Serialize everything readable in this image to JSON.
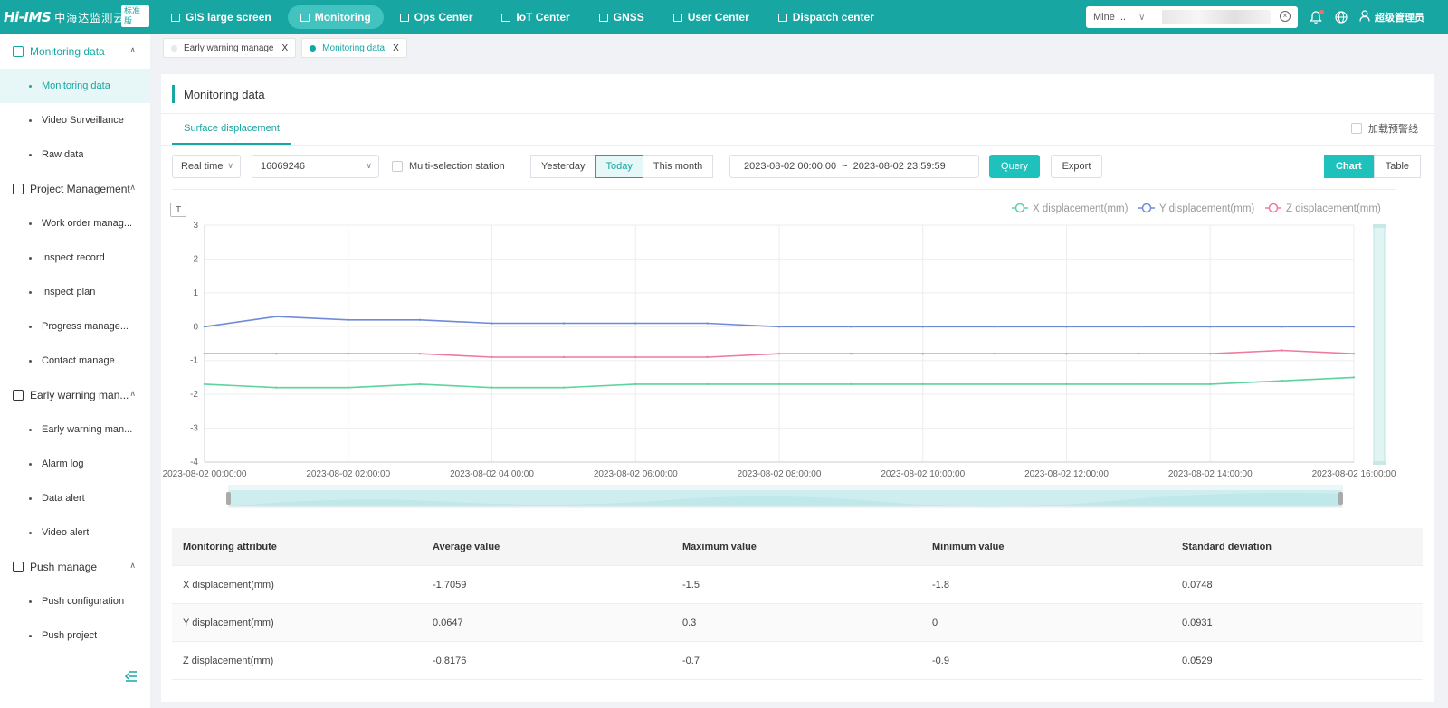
{
  "brand": {
    "mark": "Hi-IMS",
    "name_cn": "中海达监测云",
    "badge": "标准版"
  },
  "nav": [
    {
      "label": "GIS large screen",
      "icon": "monitor-icon",
      "active": false
    },
    {
      "label": "Monitoring",
      "icon": "monitor-icon",
      "active": true
    },
    {
      "label": "Ops Center",
      "icon": "building-icon",
      "active": false
    },
    {
      "label": "IoT Center",
      "icon": "cloud-icon",
      "active": false
    },
    {
      "label": "GNSS",
      "icon": "satellite-icon",
      "active": false
    },
    {
      "label": "User Center",
      "icon": "user-card-icon",
      "active": false
    },
    {
      "label": "Dispatch center",
      "icon": "dispatch-icon",
      "active": false
    }
  ],
  "topright": {
    "project_select": "Mine ...",
    "user_name": "超级管理员"
  },
  "sidebar": {
    "groups": [
      {
        "label": "Monitoring data",
        "icon": "monitoring-data-icon",
        "open": true,
        "items": [
          {
            "label": "Monitoring data",
            "active": true
          },
          {
            "label": "Video Surveillance",
            "active": false
          },
          {
            "label": "Raw data",
            "active": false
          }
        ]
      },
      {
        "label": "Project Management",
        "icon": "project-icon",
        "open": false,
        "items": [
          {
            "label": "Work order manag...",
            "active": false
          },
          {
            "label": "Inspect record",
            "active": false
          },
          {
            "label": "Inspect plan",
            "active": false
          },
          {
            "label": "Progress manage...",
            "active": false
          },
          {
            "label": "Contact manage",
            "active": false
          }
        ]
      },
      {
        "label": "Early warning man...",
        "icon": "warning-icon",
        "open": false,
        "items": [
          {
            "label": "Early warning man...",
            "active": false
          },
          {
            "label": "Alarm log",
            "active": false
          },
          {
            "label": "Data alert",
            "active": false
          },
          {
            "label": "Video alert",
            "active": false
          }
        ]
      },
      {
        "label": "Push manage",
        "icon": "push-icon",
        "open": false,
        "items": [
          {
            "label": "Push configuration",
            "active": false
          },
          {
            "label": "Push project",
            "active": false
          }
        ]
      }
    ]
  },
  "tabs": [
    {
      "label": "Early warning manage",
      "active": false
    },
    {
      "label": "Monitoring data",
      "active": true
    }
  ],
  "page": {
    "title": "Monitoring data",
    "subtab": "Surface displacement",
    "warning_line_checkbox": "加载预警线"
  },
  "filters": {
    "mode": "Real time",
    "station": "16069246",
    "multi_selection_label": "Multi-selection station",
    "periods": [
      {
        "label": "Yesterday",
        "active": false
      },
      {
        "label": "Today",
        "active": true
      },
      {
        "label": "This month",
        "active": false
      }
    ],
    "date_start": "2023-08-02 00:00:00",
    "date_sep": "~",
    "date_end": "2023-08-02 23:59:59",
    "query_label": "Query",
    "export_label": "Export",
    "view_chart": "Chart",
    "view_table": "Table"
  },
  "chart_data": {
    "type": "line",
    "x": [
      "2023-08-02 00:00:00",
      "2023-08-02 01:00:00",
      "2023-08-02 02:00:00",
      "2023-08-02 03:00:00",
      "2023-08-02 04:00:00",
      "2023-08-02 05:00:00",
      "2023-08-02 06:00:00",
      "2023-08-02 07:00:00",
      "2023-08-02 08:00:00",
      "2023-08-02 09:00:00",
      "2023-08-02 10:00:00",
      "2023-08-02 11:00:00",
      "2023-08-02 12:00:00",
      "2023-08-02 13:00:00",
      "2023-08-02 14:00:00",
      "2023-08-02 15:00:00",
      "2023-08-02 16:00:00"
    ],
    "x_tick_labels": [
      "2023-08-02 00:00:00",
      "2023-08-02 02:00:00",
      "2023-08-02 04:00:00",
      "2023-08-02 06:00:00",
      "2023-08-02 08:00:00",
      "2023-08-02 10:00:00",
      "2023-08-02 12:00:00",
      "2023-08-02 14:00:00",
      "2023-08-02 16:00:00"
    ],
    "ylim": [
      -4,
      3
    ],
    "yticks": [
      3,
      2,
      1,
      0,
      -1,
      -2,
      -3,
      -4
    ],
    "grid": true,
    "legend_position": "top-right",
    "series": [
      {
        "name": "X displacement(mm)",
        "color": "#5dd39e",
        "values": [
          -1.7,
          -1.8,
          -1.8,
          -1.7,
          -1.8,
          -1.8,
          -1.7,
          -1.7,
          -1.7,
          -1.7,
          -1.7,
          -1.7,
          -1.7,
          -1.7,
          -1.7,
          -1.6,
          -1.5
        ]
      },
      {
        "name": "Y displacement(mm)",
        "color": "#6f8bd8",
        "values": [
          0,
          0.3,
          0.2,
          0.2,
          0.1,
          0.1,
          0.1,
          0.1,
          0,
          0,
          0,
          0,
          0,
          0,
          0,
          0,
          0
        ]
      },
      {
        "name": "Z displacement(mm)",
        "color": "#ec7c9b",
        "values": [
          -0.8,
          -0.8,
          -0.8,
          -0.8,
          -0.9,
          -0.9,
          -0.9,
          -0.9,
          -0.8,
          -0.8,
          -0.8,
          -0.8,
          -0.8,
          -0.8,
          -0.8,
          -0.7,
          -0.8
        ]
      }
    ]
  },
  "stats_table": {
    "headers": [
      "Monitoring attribute",
      "Average value",
      "Maximum value",
      "Minimum value",
      "Standard deviation"
    ],
    "rows": [
      [
        "X displacement(mm)",
        "-1.7059",
        "-1.5",
        "-1.8",
        "0.0748"
      ],
      [
        "Y displacement(mm)",
        "0.0647",
        "0.3",
        "0",
        "0.0931"
      ],
      [
        "Z displacement(mm)",
        "-0.8176",
        "-0.7",
        "-0.9",
        "0.0529"
      ]
    ]
  },
  "colors": {
    "accent": "#17a6a2",
    "accent_light": "#1fc1bc"
  }
}
